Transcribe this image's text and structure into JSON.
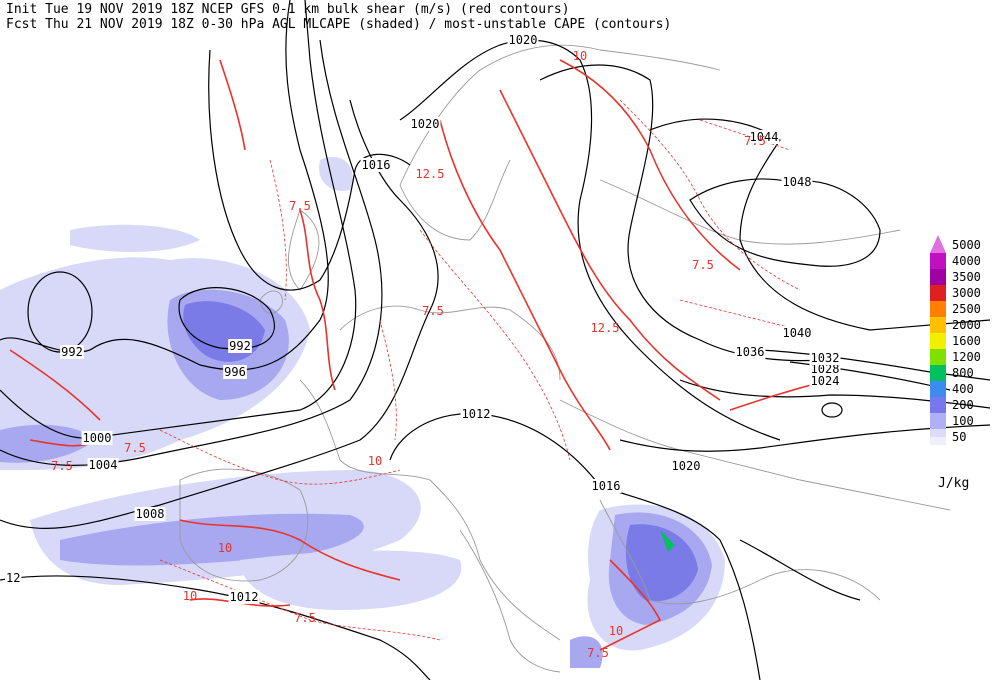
{
  "header": {
    "init": "Init  Tue 19 NOV 2019 18Z  NCEP GFS 0-1 km bulk shear (m/s) (red contours)",
    "forecast": "Fcst Thu 21 NOV 2019 18Z  0-30 hPa AGL MLCAPE (shaded) / most-unstable CAPE (contours)"
  },
  "legend": {
    "unit": "J/kg",
    "items": [
      {
        "value": 5000,
        "color": "#e070e0"
      },
      {
        "value": 4000,
        "color": "#c010c0"
      },
      {
        "value": 3500,
        "color": "#a000a0"
      },
      {
        "value": 3000,
        "color": "#e02020"
      },
      {
        "value": 2500,
        "color": "#ff8000"
      },
      {
        "value": 2000,
        "color": "#ffc000"
      },
      {
        "value": 1600,
        "color": "#f0f000"
      },
      {
        "value": 1200,
        "color": "#80e000"
      },
      {
        "value": 800,
        "color": "#00c060"
      },
      {
        "value": 400,
        "color": "#3c8cf0"
      },
      {
        "value": 200,
        "color": "#7878ec"
      },
      {
        "value": 100,
        "color": "#b0b0f4"
      },
      {
        "value": 50,
        "color": "#dcdcfa"
      }
    ]
  },
  "isobar_labels": [
    992,
    992,
    996,
    1000,
    1004,
    1008,
    1012,
    1012,
    1016,
    1016,
    1020,
    1020,
    1020,
    1024,
    1028,
    1032,
    1036,
    1040,
    1044,
    1048,
    12
  ],
  "shear_labels": [
    "7.5",
    "7.5",
    "7.5",
    "7.5",
    "7.5",
    "7.5",
    "7.5",
    "7.5",
    "10",
    "10",
    "10",
    "10",
    "10",
    "12.5",
    "12.5"
  ]
}
